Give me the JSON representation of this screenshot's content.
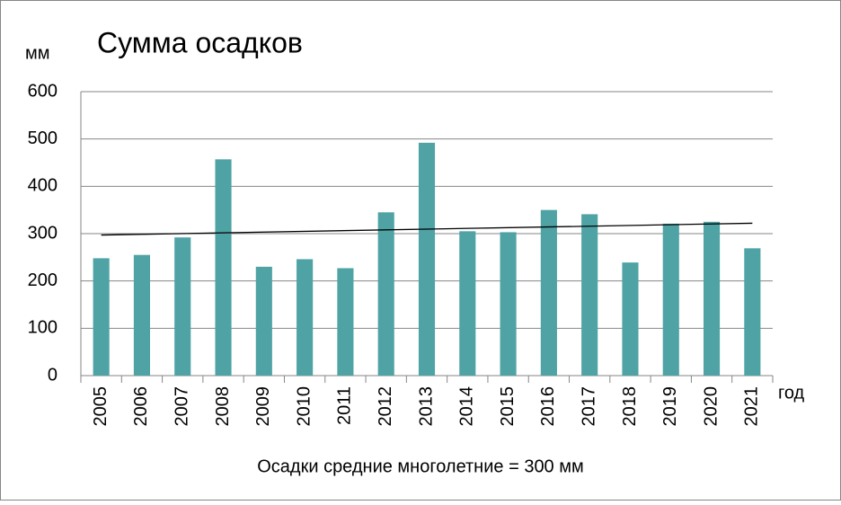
{
  "chart_data": {
    "type": "bar",
    "title": "Сумма осадков",
    "y_label": "мм",
    "x_label": "год",
    "note": "Осадки средние многолетние = 300 мм",
    "categories": [
      "2005",
      "2006",
      "2007",
      "2008",
      "2009",
      "2010",
      "2011",
      "2012",
      "2013",
      "2014",
      "2015",
      "2016",
      "2017",
      "2018",
      "2019",
      "2020",
      "2021"
    ],
    "values": [
      248,
      255,
      292,
      457,
      230,
      246,
      227,
      345,
      492,
      305,
      303,
      350,
      341,
      239,
      321,
      325,
      269
    ],
    "color": "#4fa3a5",
    "trendline": [
      297,
      322
    ],
    "ylim": [
      0,
      600
    ],
    "yticks": [
      0,
      100,
      200,
      300,
      400,
      500,
      600
    ],
    "grid": true
  }
}
